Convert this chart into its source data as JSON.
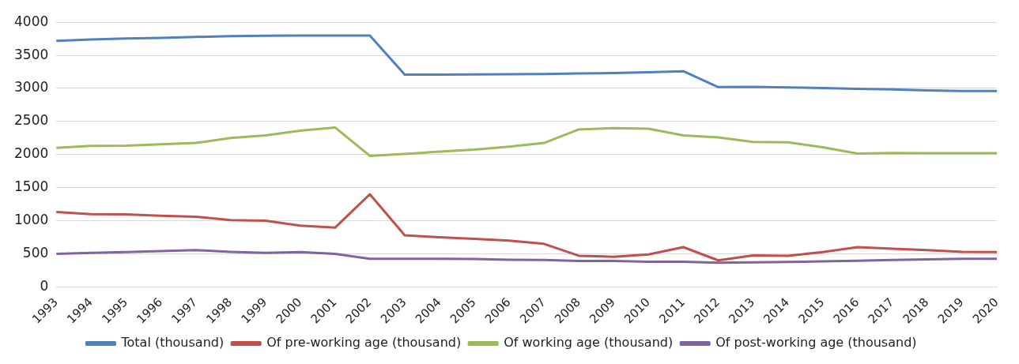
{
  "chart_data": {
    "type": "line",
    "categories": [
      "1993",
      "1994",
      "1995",
      "1996",
      "1997",
      "1998",
      "1999",
      "2000",
      "2001",
      "2002",
      "2003",
      "2004",
      "2005",
      "2006",
      "2007",
      "2008",
      "2009",
      "2010",
      "2011",
      "2012",
      "2013",
      "2014",
      "2015",
      "2016",
      "2017",
      "2018",
      "2019",
      "2020"
    ],
    "series": [
      {
        "name": "Total (thousand)",
        "color": "#4f81bd",
        "values": [
          3720,
          3740,
          3755,
          3765,
          3778,
          3790,
          3795,
          3800,
          3800,
          3798,
          3210,
          3210,
          3212,
          3215,
          3218,
          3225,
          3232,
          3245,
          3260,
          3020,
          3025,
          3015,
          3005,
          2995,
          2985,
          2970,
          2962,
          2960
        ]
      },
      {
        "name": "Of pre-working age (thousand)",
        "color": "#c0504d",
        "values": [
          1130,
          1100,
          1095,
          1075,
          1060,
          1010,
          1000,
          925,
          895,
          1400,
          780,
          750,
          725,
          700,
          650,
          470,
          455,
          490,
          600,
          400,
          475,
          470,
          525,
          600,
          575,
          555,
          530,
          525
        ]
      },
      {
        "name": "Of working age (thousand)",
        "color": "#9bbb59",
        "values": [
          2100,
          2130,
          2135,
          2155,
          2175,
          2250,
          2290,
          2360,
          2410,
          1980,
          2010,
          2045,
          2075,
          2120,
          2175,
          2380,
          2400,
          2390,
          2290,
          2260,
          2190,
          2185,
          2110,
          2015,
          2025,
          2020,
          2020,
          2020
        ]
      },
      {
        "name": "Of post-working age (thousand)",
        "color": "#8064a2",
        "values": [
          500,
          515,
          525,
          540,
          555,
          530,
          515,
          525,
          500,
          425,
          425,
          425,
          420,
          410,
          405,
          390,
          390,
          380,
          380,
          365,
          370,
          375,
          385,
          395,
          405,
          415,
          425,
          425
        ]
      }
    ],
    "ylim": [
      0,
      4000
    ],
    "yticks": [
      0,
      500,
      1000,
      1500,
      2000,
      2500,
      3000,
      3500,
      4000
    ],
    "grid": "y",
    "legend": "bottom",
    "marker": "none",
    "line_style": "solid"
  }
}
